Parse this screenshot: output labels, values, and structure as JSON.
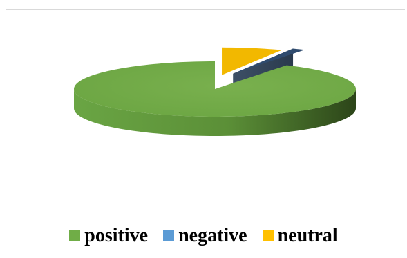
{
  "chart_data": {
    "type": "pie",
    "style": "3d",
    "title": "",
    "categories": [
      "positive",
      "negative",
      "neutral"
    ],
    "values": [
      91.5,
      1.5,
      7.0
    ],
    "unit": "percent (estimated)",
    "exploded": [
      "negative",
      "neutral"
    ],
    "legend_position": "bottom",
    "colors": [
      "#70ad47",
      "#5b9bd5",
      "#ffc000"
    ]
  }
}
